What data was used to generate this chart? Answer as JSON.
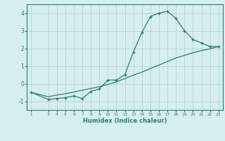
{
  "xlabel": "Humidex (Indice chaleur)",
  "x": [
    1,
    3,
    4,
    5,
    6,
    7,
    8,
    9,
    10,
    11,
    12,
    13,
    14,
    15,
    16,
    17,
    18,
    19,
    20,
    21,
    22,
    23
  ],
  "y_curve": [
    -0.5,
    -0.9,
    -0.85,
    -0.8,
    -0.7,
    -0.85,
    -0.45,
    -0.3,
    0.2,
    0.2,
    0.5,
    1.8,
    2.9,
    3.8,
    4.0,
    4.1,
    3.7,
    3.0,
    2.5,
    2.3,
    2.1,
    2.1
  ],
  "y_line": [
    -0.5,
    -0.75,
    -0.65,
    -0.58,
    -0.48,
    -0.38,
    -0.28,
    -0.18,
    -0.05,
    0.1,
    0.28,
    0.48,
    0.65,
    0.85,
    1.05,
    1.25,
    1.45,
    1.6,
    1.75,
    1.87,
    1.97,
    2.1
  ],
  "color": "#2e7d70",
  "bg_color": "#d6eeee",
  "grid_color": "#b0cece",
  "ylim": [
    -1.5,
    4.5
  ],
  "yticks": [
    -1,
    0,
    1,
    2,
    3,
    4
  ],
  "xlim": [
    0.5,
    23.5
  ],
  "xticks": [
    1,
    3,
    4,
    5,
    6,
    7,
    8,
    9,
    10,
    11,
    12,
    13,
    14,
    15,
    16,
    17,
    18,
    19,
    20,
    21,
    22,
    23
  ]
}
